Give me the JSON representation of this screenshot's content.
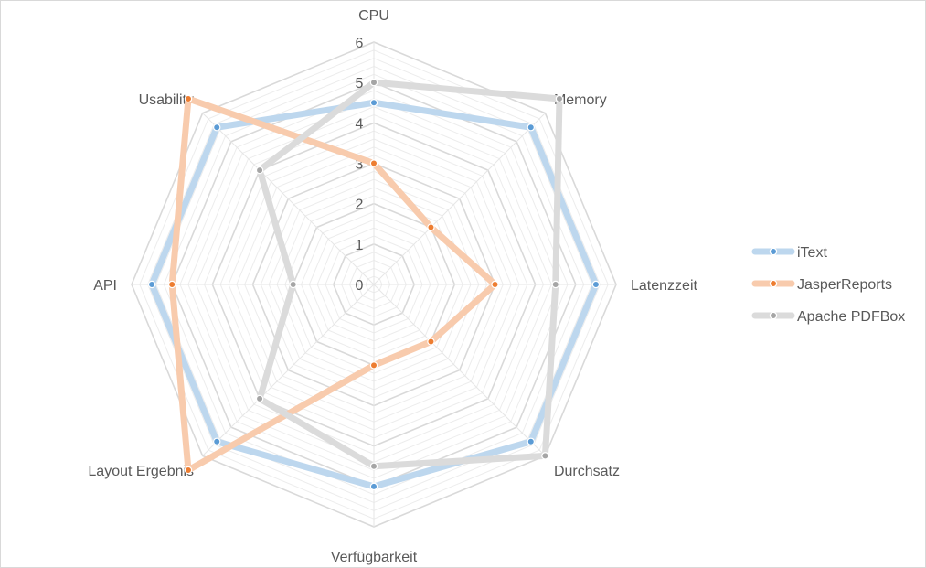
{
  "chart_data": {
    "type": "radar",
    "title": "",
    "axes": [
      "CPU",
      "Memory",
      "Latenzzeit",
      "Durchsatz",
      "Verfügbarkeit",
      "Layout Ergebnis",
      "API",
      "Usability"
    ],
    "range": [
      0,
      6
    ],
    "major_ticks": [
      "0",
      "1",
      "2",
      "3",
      "4",
      "5",
      "6"
    ],
    "minor_step": 0.2,
    "grid": true,
    "legend_position": "right",
    "series": [
      {
        "name": "iText",
        "values": [
          4.5,
          5.5,
          5.5,
          5.5,
          5.0,
          5.5,
          5.5,
          5.5
        ],
        "color": "#5b9bd5",
        "line_color": "#bdd7ee"
      },
      {
        "name": "JasperReports",
        "values": [
          3.0,
          2.0,
          3.0,
          2.0,
          2.0,
          6.5,
          5.0,
          6.5
        ],
        "color": "#ed7d31",
        "line_color": "#f8cbad"
      },
      {
        "name": "Apache PDFBox",
        "values": [
          5.0,
          6.5,
          4.5,
          6.0,
          4.5,
          4.0,
          2.0,
          4.0
        ],
        "color": "#a5a5a5",
        "line_color": "#dbdbdb"
      }
    ]
  }
}
